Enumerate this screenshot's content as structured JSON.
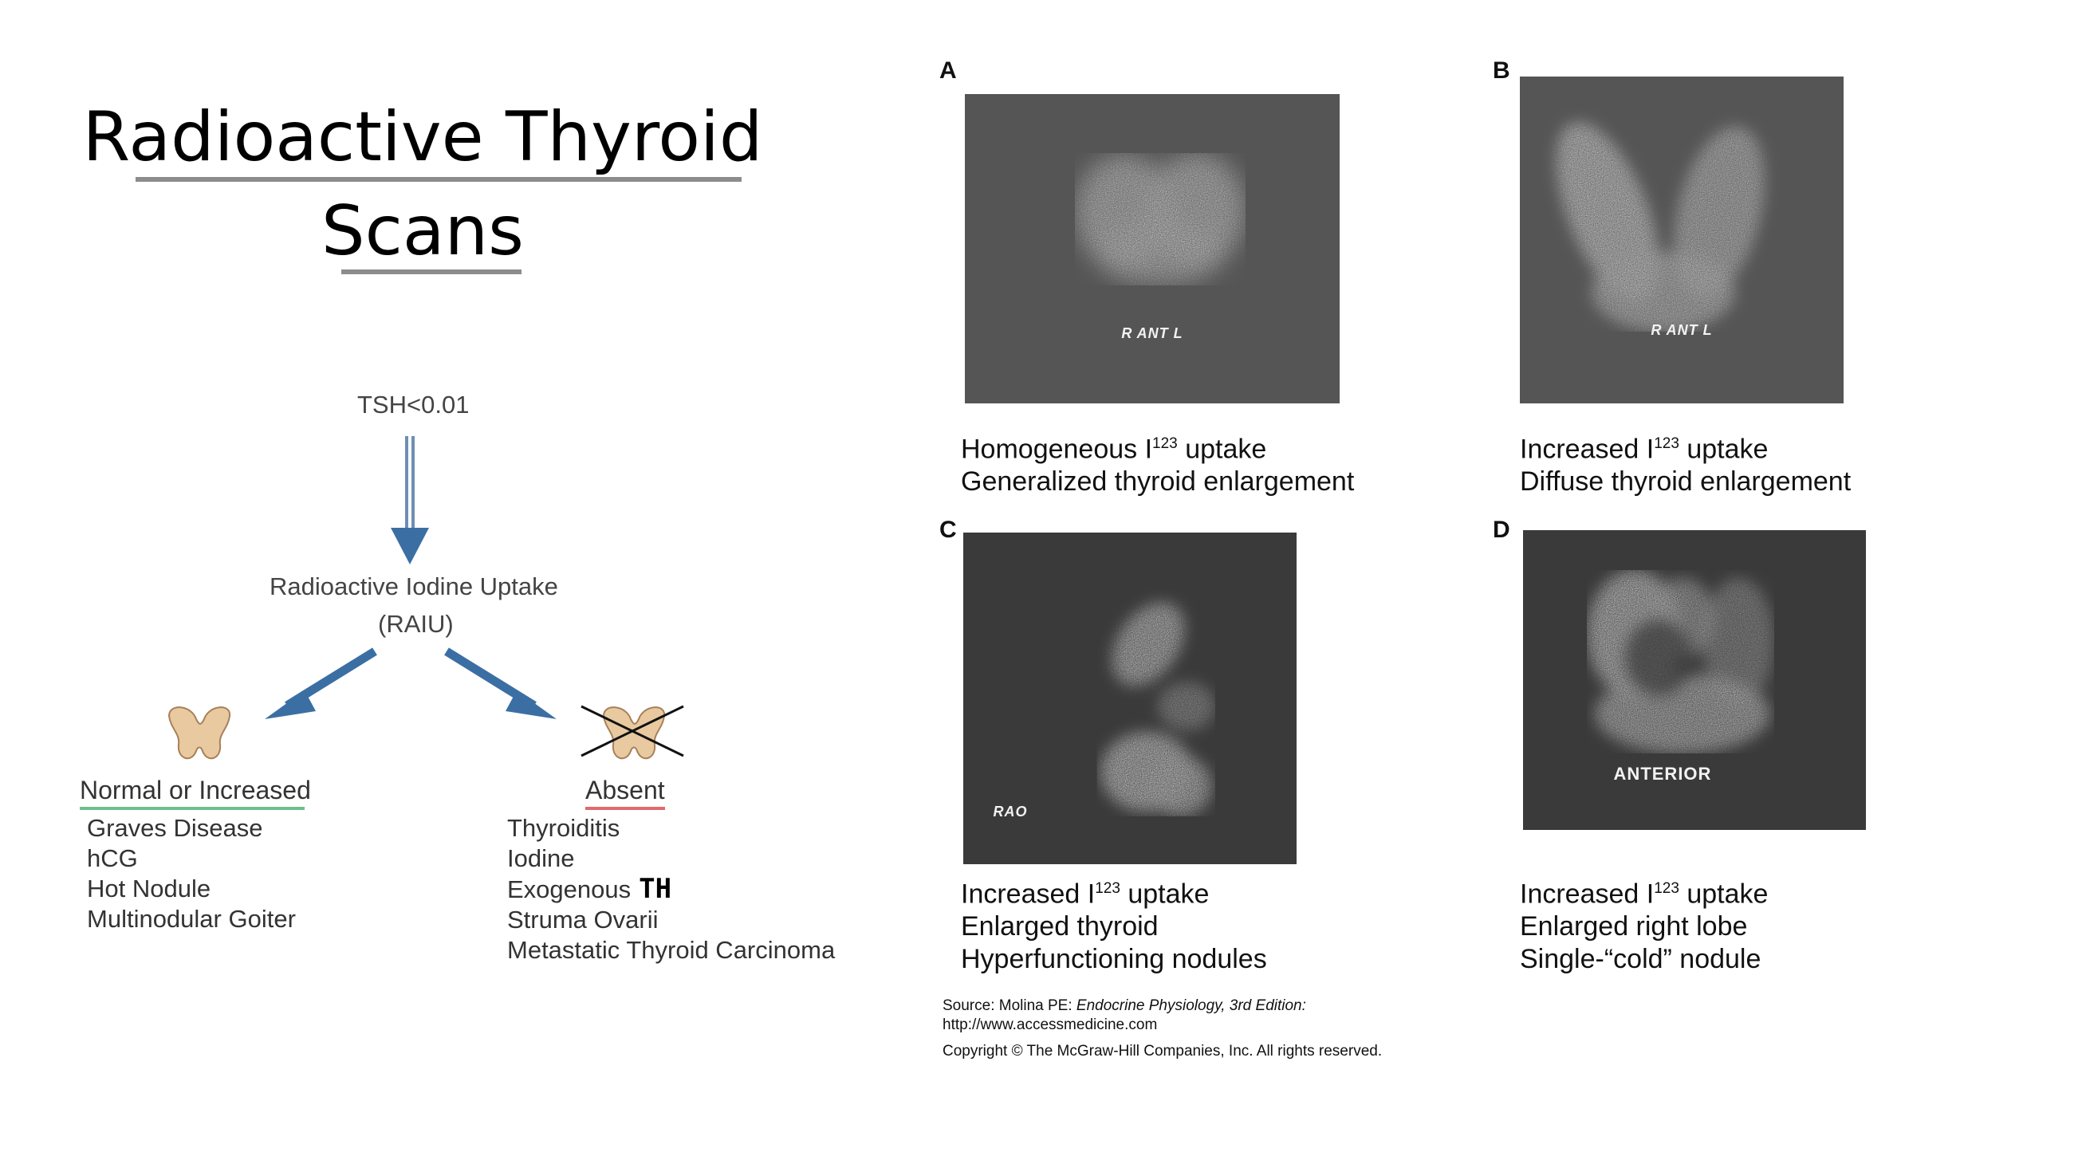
{
  "title": {
    "line1": "Radioactive Thyroid",
    "line2": "Scans"
  },
  "flowchart": {
    "start": "TSH<0.01",
    "test_line1": "Radioactive Iodine Uptake",
    "test_line2": "(RAIU)",
    "left": {
      "heading": "Normal or Increased",
      "underline_color": "#6fbf8c",
      "items": [
        "Graves Disease",
        "hCG",
        "Hot Nodule",
        "Multinodular Goiter"
      ]
    },
    "right": {
      "heading": "Absent",
      "underline_color": "#e06b6b",
      "items": [
        "Thyroiditis",
        "Iodine",
        "Exogenous",
        "Struma Ovarii",
        "Metastatic Thyroid Carcinoma"
      ],
      "annotation": "TH"
    },
    "arrow_color": "#3b6fa3",
    "gland_color": "#e8c9a0"
  },
  "panels": [
    {
      "letter": "A",
      "scan_label": "R  ANT L",
      "caption_line1_pre": "Homogeneous I",
      "caption_line1_sup": "123",
      "caption_line1_post": " uptake",
      "caption_line2": "Generalized thyroid enlargement",
      "caption_line3": ""
    },
    {
      "letter": "B",
      "scan_label": "R  ANT L",
      "caption_line1_pre": "Increased I",
      "caption_line1_sup": "123",
      "caption_line1_post": " uptake",
      "caption_line2": "Diffuse thyroid enlargement",
      "caption_line3": ""
    },
    {
      "letter": "C",
      "scan_label": "RAO",
      "caption_line1_pre": "Increased I",
      "caption_line1_sup": "123",
      "caption_line1_post": " uptake",
      "caption_line2": "Enlarged thyroid",
      "caption_line3": "Hyperfunctioning nodules"
    },
    {
      "letter": "D",
      "scan_label": "ANTERIOR",
      "caption_line1_pre": "Increased I",
      "caption_line1_sup": "123",
      "caption_line1_post": " uptake",
      "caption_line2": "Enlarged right lobe",
      "caption_line3": "Single-“cold” nodule"
    }
  ],
  "source": {
    "line1_pre": "Source: Molina PE: ",
    "line1_italic": "Endocrine Physiology, 3rd Edition:",
    "line2": "http://www.accessmedicine.com",
    "line3": "Copyright © The McGraw-Hill Companies, Inc. All rights reserved."
  }
}
